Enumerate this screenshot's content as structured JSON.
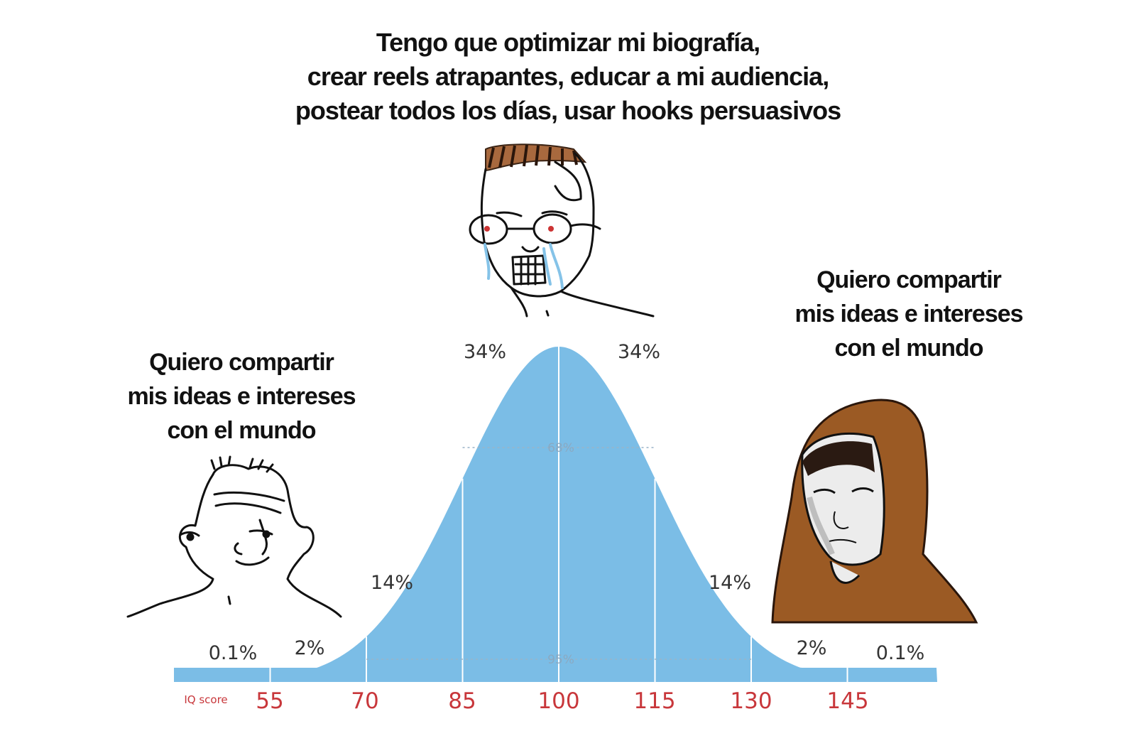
{
  "captions": {
    "top": [
      "Tengo que optimizar mi biografía,",
      "crear reels atrapantes, educar a mi audiencia,",
      "postear todos los días, usar hooks persuasivos"
    ],
    "left": [
      "Quiero compartir",
      "mis ideas e intereses",
      "con el mundo"
    ],
    "right": [
      "Quiero compartir",
      "mis ideas e intereses",
      "con el mundo"
    ]
  },
  "chart_data": {
    "type": "area",
    "xlabel": "IQ score",
    "x_ticks": [
      "55",
      "70",
      "85",
      "100",
      "115",
      "130",
      "145"
    ],
    "segment_labels": [
      "0.1%",
      "2%",
      "14%",
      "34%",
      "34%",
      "14%",
      "2%",
      "0.1%"
    ],
    "inner_labels": [
      "68%",
      "95%"
    ],
    "fill_color": "#7bbde6",
    "tick_color": "#c8373b"
  },
  "characters": [
    {
      "position": "left",
      "icon": "wojak-simple-face-icon"
    },
    {
      "position": "center",
      "icon": "crying-nerd-glasses-icon"
    },
    {
      "position": "right",
      "icon": "hooded-monk-icon"
    }
  ]
}
